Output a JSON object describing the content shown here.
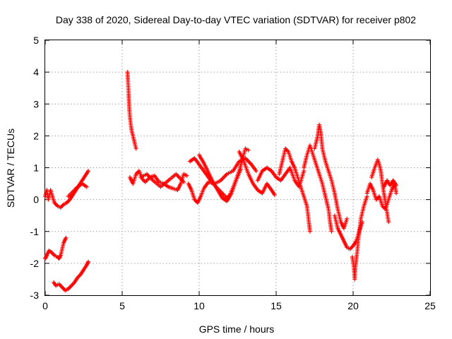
{
  "chart_data": {
    "type": "scatter",
    "title": "Day 338 of 2020, Sidereal Day-to-day VTEC variation (SDTVAR) for receiver p802",
    "xlabel": "GPS time / hours",
    "ylabel": "SDTVAR / TECUs",
    "xlim": [
      0,
      25
    ],
    "ylim": [
      -3,
      5
    ],
    "xticks": [
      "0",
      "5",
      "10",
      "15",
      "20",
      "25"
    ],
    "yticks": [
      "-3",
      "-2",
      "-1",
      "0",
      "1",
      "2",
      "3",
      "4",
      "5"
    ],
    "grid": true,
    "marker": "plus",
    "color": "#ff0000",
    "segments": [
      {
        "name": "seg-a",
        "points": [
          [
            0.0,
            0.1
          ],
          [
            0.1,
            0.3
          ],
          [
            0.2,
            0.0
          ],
          [
            0.35,
            0.3
          ],
          [
            0.5,
            0.05
          ],
          [
            0.6,
            -0.1
          ],
          [
            0.8,
            -0.2
          ],
          [
            1.0,
            -0.25
          ],
          [
            1.2,
            -0.15
          ],
          [
            1.4,
            -0.1
          ],
          [
            1.6,
            0.0
          ],
          [
            1.8,
            0.15
          ],
          [
            2.0,
            0.3
          ],
          [
            2.2,
            0.45
          ],
          [
            2.4,
            0.6
          ],
          [
            2.6,
            0.75
          ],
          [
            2.8,
            0.9
          ]
        ]
      },
      {
        "name": "seg-b",
        "points": [
          [
            1.5,
            0.1
          ],
          [
            1.8,
            0.25
          ],
          [
            2.1,
            0.4
          ],
          [
            2.4,
            0.5
          ],
          [
            2.7,
            0.4
          ]
        ]
      },
      {
        "name": "seg-c",
        "points": [
          [
            0.0,
            -1.85
          ],
          [
            0.1,
            -1.75
          ],
          [
            0.25,
            -1.6
          ],
          [
            0.4,
            -1.65
          ],
          [
            0.6,
            -1.75
          ],
          [
            0.8,
            -1.8
          ],
          [
            0.9,
            -1.85
          ],
          [
            1.0,
            -1.75
          ],
          [
            1.1,
            -1.55
          ],
          [
            1.2,
            -1.35
          ],
          [
            1.35,
            -1.2
          ]
        ]
      },
      {
        "name": "seg-d",
        "points": [
          [
            0.55,
            -2.6
          ],
          [
            0.7,
            -2.7
          ],
          [
            0.9,
            -2.65
          ],
          [
            1.1,
            -2.75
          ],
          [
            1.3,
            -2.85
          ],
          [
            1.5,
            -2.8
          ],
          [
            1.7,
            -2.7
          ],
          [
            1.9,
            -2.6
          ],
          [
            2.1,
            -2.45
          ],
          [
            2.3,
            -2.35
          ],
          [
            2.5,
            -2.2
          ],
          [
            2.7,
            -2.05
          ],
          [
            2.8,
            -1.95
          ]
        ]
      },
      {
        "name": "seg-e",
        "points": [
          [
            5.35,
            4.0
          ],
          [
            5.4,
            3.5
          ],
          [
            5.45,
            3.0
          ],
          [
            5.5,
            2.6
          ],
          [
            5.6,
            2.2
          ],
          [
            5.7,
            2.0
          ],
          [
            5.8,
            1.8
          ],
          [
            5.9,
            1.6
          ]
        ]
      },
      {
        "name": "seg-f",
        "points": [
          [
            5.5,
            0.7
          ],
          [
            5.7,
            0.5
          ],
          [
            5.9,
            0.8
          ],
          [
            6.1,
            0.9
          ],
          [
            6.3,
            0.65
          ],
          [
            6.5,
            0.55
          ],
          [
            6.8,
            0.7
          ],
          [
            7.1,
            0.75
          ],
          [
            7.4,
            0.55
          ],
          [
            7.7,
            0.5
          ],
          [
            8.0,
            0.4
          ],
          [
            8.3,
            0.35
          ],
          [
            8.6,
            0.3
          ],
          [
            8.8,
            0.5
          ],
          [
            9.0,
            0.8
          ],
          [
            9.2,
            0.75
          ]
        ]
      },
      {
        "name": "seg-g",
        "points": [
          [
            6.2,
            0.7
          ],
          [
            6.6,
            0.8
          ],
          [
            7.0,
            0.6
          ],
          [
            7.5,
            0.4
          ],
          [
            8.0,
            0.6
          ],
          [
            8.5,
            0.8
          ],
          [
            9.0,
            0.55
          ]
        ]
      },
      {
        "name": "seg-h",
        "points": [
          [
            9.3,
            0.5
          ],
          [
            9.5,
            0.3
          ],
          [
            9.7,
            0.0
          ],
          [
            9.9,
            -0.1
          ],
          [
            10.1,
            0.1
          ],
          [
            10.3,
            0.35
          ],
          [
            10.6,
            0.55
          ],
          [
            11.0,
            0.5
          ],
          [
            11.4,
            0.6
          ],
          [
            11.8,
            0.8
          ],
          [
            12.2,
            0.9
          ],
          [
            12.6,
            1.2
          ],
          [
            13.0,
            1.3
          ],
          [
            13.4,
            1.1
          ],
          [
            13.7,
            0.9
          ]
        ]
      },
      {
        "name": "seg-i",
        "points": [
          [
            9.4,
            1.2
          ],
          [
            9.7,
            1.3
          ],
          [
            10.0,
            1.1
          ],
          [
            10.3,
            0.9
          ],
          [
            10.6,
            0.7
          ],
          [
            10.9,
            0.5
          ],
          [
            11.2,
            0.35
          ],
          [
            11.5,
            0.2
          ],
          [
            11.8,
            0.05
          ],
          [
            12.0,
            0.15
          ],
          [
            12.3,
            0.5
          ],
          [
            12.6,
            0.9
          ],
          [
            12.8,
            1.25
          ],
          [
            13.0,
            1.6
          ],
          [
            13.2,
            1.55
          ]
        ]
      },
      {
        "name": "seg-j",
        "points": [
          [
            10.0,
            1.4
          ],
          [
            10.3,
            1.15
          ],
          [
            10.6,
            0.85
          ],
          [
            10.9,
            0.55
          ],
          [
            11.2,
            0.3
          ],
          [
            11.5,
            0.05
          ],
          [
            11.8,
            -0.05
          ],
          [
            12.1,
            0.2
          ],
          [
            12.4,
            0.6
          ],
          [
            12.7,
            0.95
          ]
        ]
      },
      {
        "name": "seg-k",
        "points": [
          [
            12.6,
            1.5
          ],
          [
            12.9,
            1.2
          ],
          [
            13.2,
            0.8
          ],
          [
            13.5,
            0.5
          ],
          [
            13.8,
            0.3
          ],
          [
            14.1,
            0.2
          ],
          [
            14.4,
            0.5
          ],
          [
            14.7,
            0.3
          ],
          [
            14.9,
            0.15
          ]
        ]
      },
      {
        "name": "seg-l",
        "points": [
          [
            13.8,
            0.6
          ],
          [
            14.1,
            0.9
          ],
          [
            14.4,
            1.0
          ],
          [
            14.7,
            0.9
          ],
          [
            15.0,
            0.7
          ],
          [
            15.3,
            0.6
          ],
          [
            15.6,
            0.8
          ],
          [
            15.9,
            1.0
          ],
          [
            16.2,
            0.6
          ],
          [
            16.5,
            0.4
          ],
          [
            16.8,
            0.9
          ]
        ]
      },
      {
        "name": "seg-m",
        "points": [
          [
            15.2,
            0.8
          ],
          [
            15.4,
            1.2
          ],
          [
            15.6,
            1.6
          ],
          [
            15.8,
            1.5
          ],
          [
            16.0,
            1.2
          ],
          [
            16.2,
            1.0
          ],
          [
            16.4,
            0.7
          ],
          [
            16.6,
            0.4
          ],
          [
            16.8,
            0.1
          ],
          [
            17.0,
            -0.2
          ],
          [
            17.1,
            -0.6
          ],
          [
            17.2,
            -1.0
          ]
        ]
      },
      {
        "name": "seg-n",
        "points": [
          [
            16.8,
            1.0
          ],
          [
            17.0,
            1.4
          ],
          [
            17.2,
            1.7
          ],
          [
            17.4,
            1.4
          ],
          [
            17.6,
            1.1
          ],
          [
            17.8,
            0.8
          ],
          [
            18.0,
            0.5
          ],
          [
            18.2,
            0.1
          ],
          [
            18.4,
            -0.3
          ],
          [
            18.5,
            -0.7
          ],
          [
            18.6,
            -1.0
          ]
        ]
      },
      {
        "name": "seg-o",
        "points": [
          [
            17.5,
            1.6
          ],
          [
            17.7,
            2.0
          ],
          [
            17.8,
            2.35
          ],
          [
            17.9,
            2.1
          ],
          [
            18.0,
            1.6
          ],
          [
            18.2,
            1.2
          ],
          [
            18.4,
            0.9
          ],
          [
            18.6,
            0.6
          ],
          [
            18.8,
            0.2
          ],
          [
            19.0,
            -0.3
          ],
          [
            19.2,
            -0.7
          ],
          [
            19.4,
            -0.9
          ],
          [
            19.6,
            -0.6
          ]
        ]
      },
      {
        "name": "seg-p",
        "points": [
          [
            18.8,
            -0.5
          ],
          [
            19.0,
            -0.9
          ],
          [
            19.2,
            -1.1
          ],
          [
            19.4,
            -1.3
          ],
          [
            19.6,
            -1.5
          ],
          [
            19.8,
            -1.55
          ],
          [
            20.0,
            -1.45
          ],
          [
            20.2,
            -1.3
          ],
          [
            20.4,
            -1.0
          ],
          [
            20.6,
            -0.7
          ]
        ]
      },
      {
        "name": "seg-q",
        "points": [
          [
            19.95,
            -1.8
          ],
          [
            20.05,
            -2.1
          ],
          [
            20.1,
            -2.5
          ],
          [
            20.15,
            -2.1
          ],
          [
            20.25,
            -1.7
          ],
          [
            20.35,
            -1.2
          ],
          [
            20.5,
            -0.6
          ],
          [
            20.7,
            -0.2
          ],
          [
            20.9,
            0.1
          ]
        ]
      },
      {
        "name": "seg-r",
        "points": [
          [
            20.9,
            0.2
          ],
          [
            21.1,
            0.5
          ],
          [
            21.3,
            0.3
          ],
          [
            21.5,
            0.0
          ],
          [
            21.7,
            0.1
          ],
          [
            21.9,
            -0.2
          ],
          [
            22.1,
            -0.3
          ],
          [
            22.3,
            0.0
          ],
          [
            22.5,
            0.3
          ],
          [
            22.7,
            0.5
          ],
          [
            22.8,
            0.2
          ]
        ]
      },
      {
        "name": "seg-s",
        "points": [
          [
            21.2,
            0.7
          ],
          [
            21.4,
            1.0
          ],
          [
            21.6,
            1.25
          ],
          [
            21.7,
            1.1
          ],
          [
            21.8,
            0.9
          ],
          [
            21.9,
            0.5
          ],
          [
            22.0,
            0.2
          ],
          [
            22.1,
            -0.1
          ],
          [
            22.2,
            -0.4
          ],
          [
            22.3,
            -0.7
          ]
        ]
      },
      {
        "name": "seg-t",
        "points": [
          [
            22.0,
            0.4
          ],
          [
            22.2,
            0.6
          ],
          [
            22.4,
            0.45
          ],
          [
            22.6,
            0.6
          ],
          [
            22.8,
            0.45
          ]
        ]
      }
    ]
  }
}
